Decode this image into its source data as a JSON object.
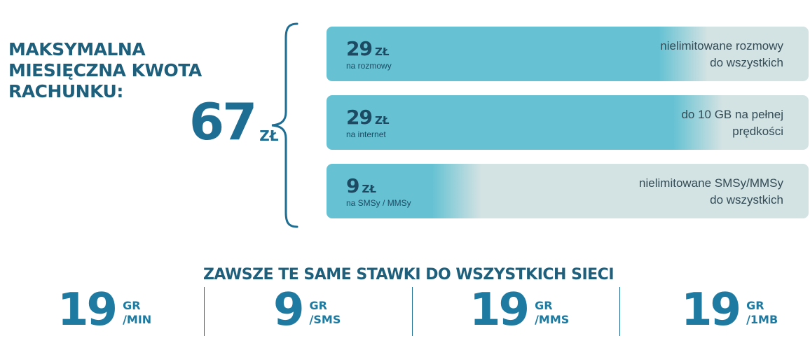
{
  "heading": {
    "line1": "MAKSYMALNA",
    "line2": "MIESIĘCZNA KWOTA",
    "line3": "RACHUNKU:"
  },
  "total": {
    "amount": "67",
    "currency": "ZŁ"
  },
  "cards": [
    {
      "amount": "29",
      "currency": "ZŁ",
      "subtitle": "na rozmowy",
      "desc_line1": "nielimitowane rozmowy",
      "desc_line2": "do wszystkich",
      "fill_fraction": 0.69
    },
    {
      "amount": "29",
      "currency": "ZŁ",
      "subtitle": "na internet",
      "desc_line1": "do 10 GB na pełnej",
      "desc_line2": "prędkości",
      "fill_fraction": 0.72
    },
    {
      "amount": "9",
      "currency": "ZŁ",
      "subtitle": "na SMSy / MMSy",
      "desc_line1": "nielimitowane SMSy/MMSy",
      "desc_line2": "do wszystkich",
      "fill_fraction": 0.22
    }
  ],
  "rates_heading": "ZAWSZE TE SAME STAWKI DO WSZYSTKICH SIECI",
  "rates": [
    {
      "value": "19",
      "unit1": "GR",
      "unit2": "/MIN"
    },
    {
      "value": "9",
      "unit1": "GR",
      "unit2": "/SMS"
    },
    {
      "value": "19",
      "unit1": "GR",
      "unit2": "/MMS"
    },
    {
      "value": "19",
      "unit1": "GR",
      "unit2": "/1MB"
    }
  ],
  "colors": {
    "fill": "#66c2d3",
    "track": "#d3e2e3",
    "accent": "#1e6d93",
    "dark_text": "#1c4a63"
  }
}
